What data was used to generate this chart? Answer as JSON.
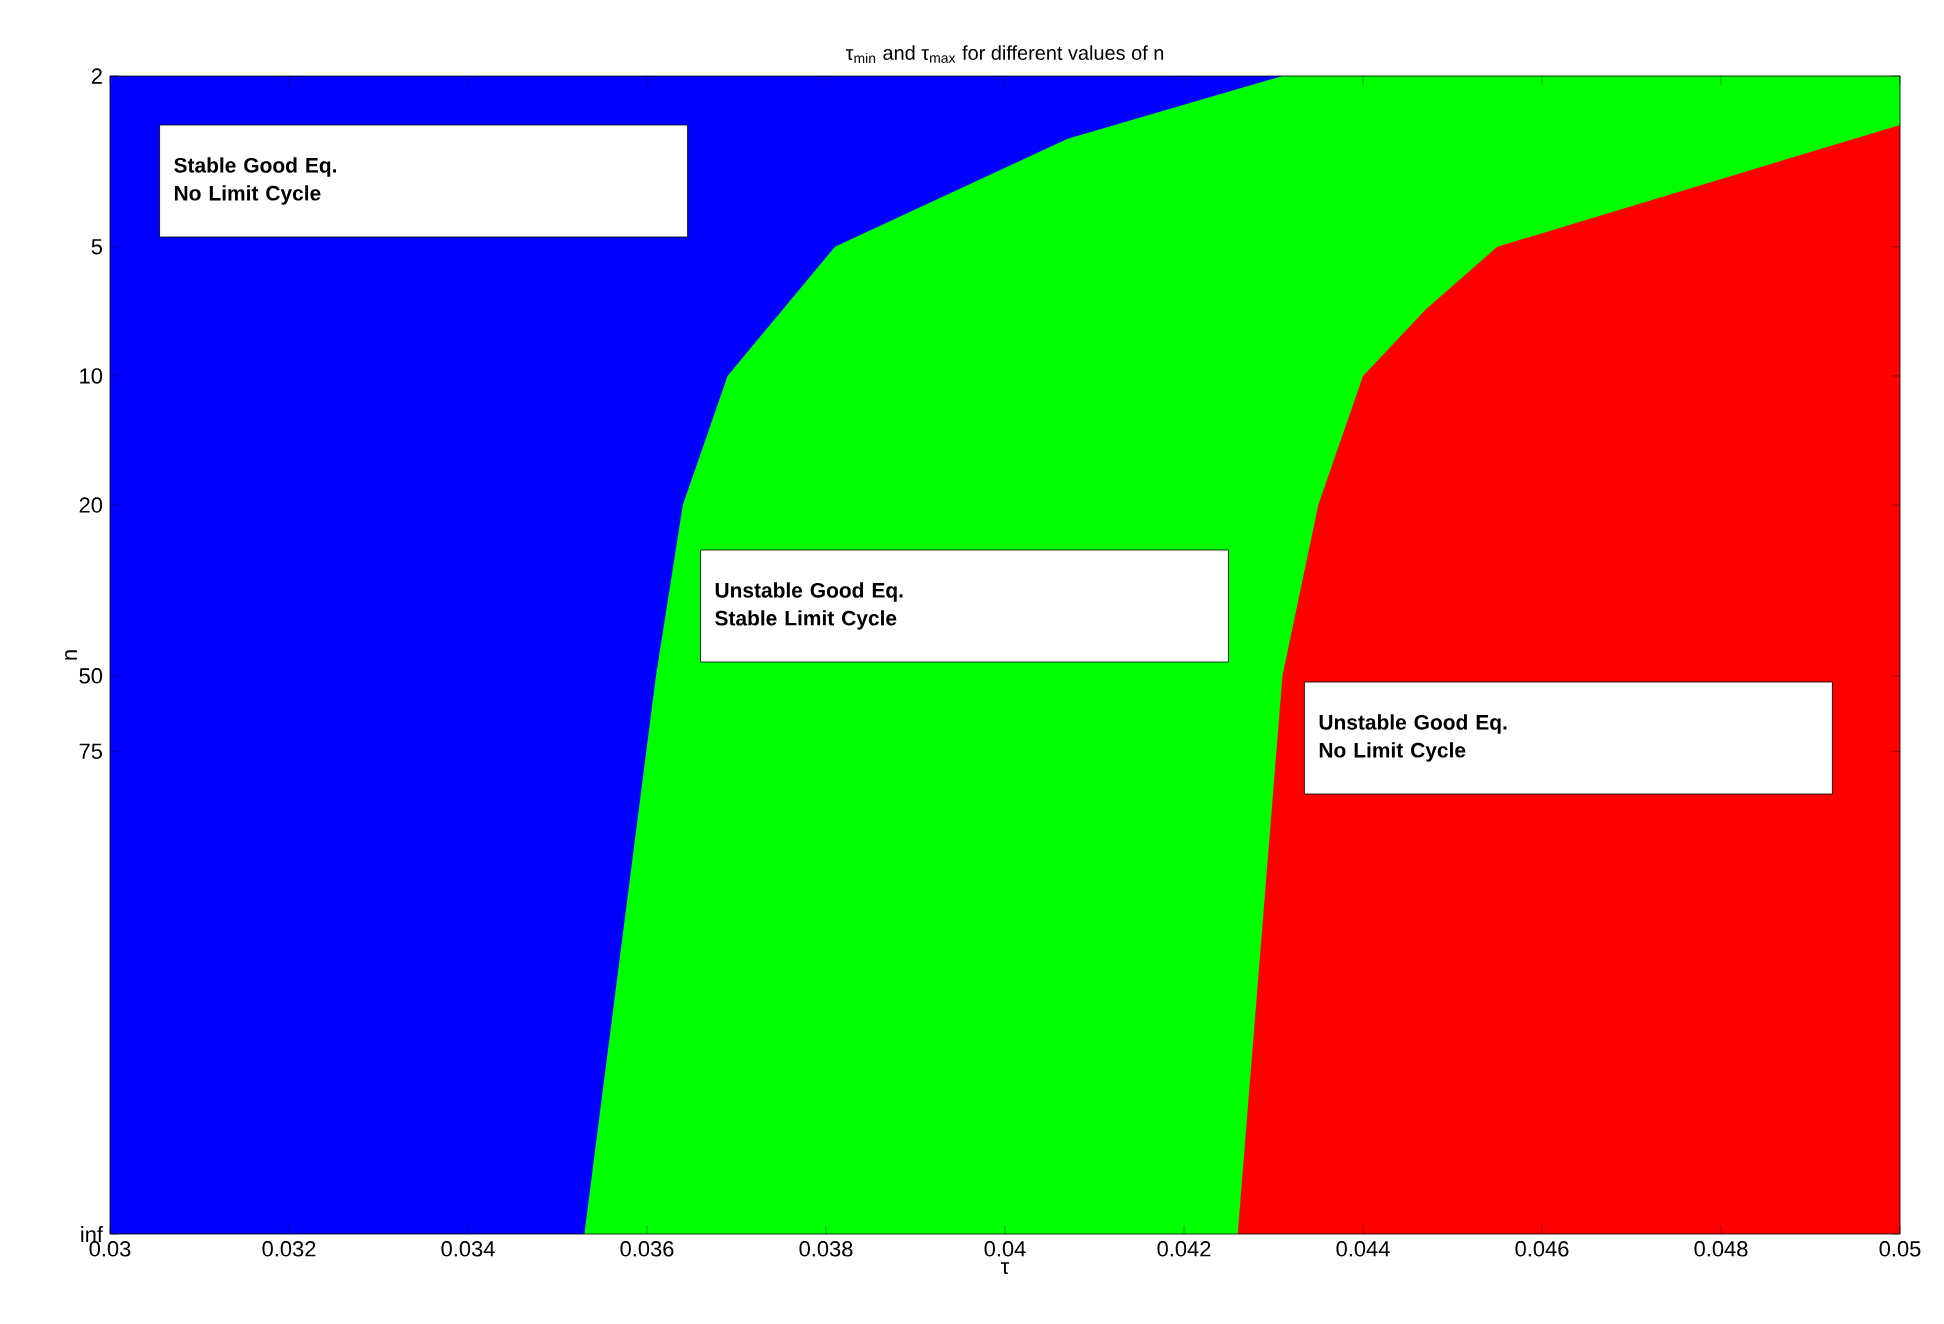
{
  "chart_data": {
    "type": "area",
    "title": "τ$_{min}$ and  τ$_{max}$ for different values of n",
    "xlabel": "τ",
    "ylabel": "n",
    "xlim": [
      0.03,
      0.05
    ],
    "ylim": [
      1000,
      2
    ],
    "log": "y",
    "xticks": [
      0.03,
      0.032,
      0.034,
      0.036,
      0.038,
      0.04,
      0.042,
      0.044,
      0.046,
      0.048,
      0.05
    ],
    "yticks": [
      {
        "value": 1000,
        "label": "inf"
      },
      75,
      50,
      20,
      10,
      5,
      2
    ],
    "series": [
      {
        "color": "#0000ff",
        "x": [
          0.03,
          0.05,
          0.05,
          0.03
        ],
        "values": [
          2,
          2,
          1000,
          1000
        ]
      },
      {
        "color": "#00ff00",
        "x": [
          0.0431,
          0.05,
          0.05,
          0.0353,
          0.0361,
          0.0364,
          0.0369,
          0.0381,
          0.0407
        ],
        "values": [
          2,
          2,
          1000,
          1000,
          50,
          20,
          10,
          5,
          2.8
        ]
      },
      {
        "color": "#ff0000",
        "x": [
          0.05,
          0.05,
          0.0426,
          0.0431,
          0.0435,
          0.044,
          0.0447,
          0.0455
        ],
        "values": [
          2.6,
          1000,
          1000,
          50,
          20,
          10,
          7,
          5
        ]
      }
    ],
    "annotations": [
      "Stable Good Eq.",
      "No Limit Cycle",
      "Unstable Good Eq.",
      "Stable Limit Cycle",
      "Unstable Good Eq.",
      "No Limit Cycle"
    ]
  }
}
